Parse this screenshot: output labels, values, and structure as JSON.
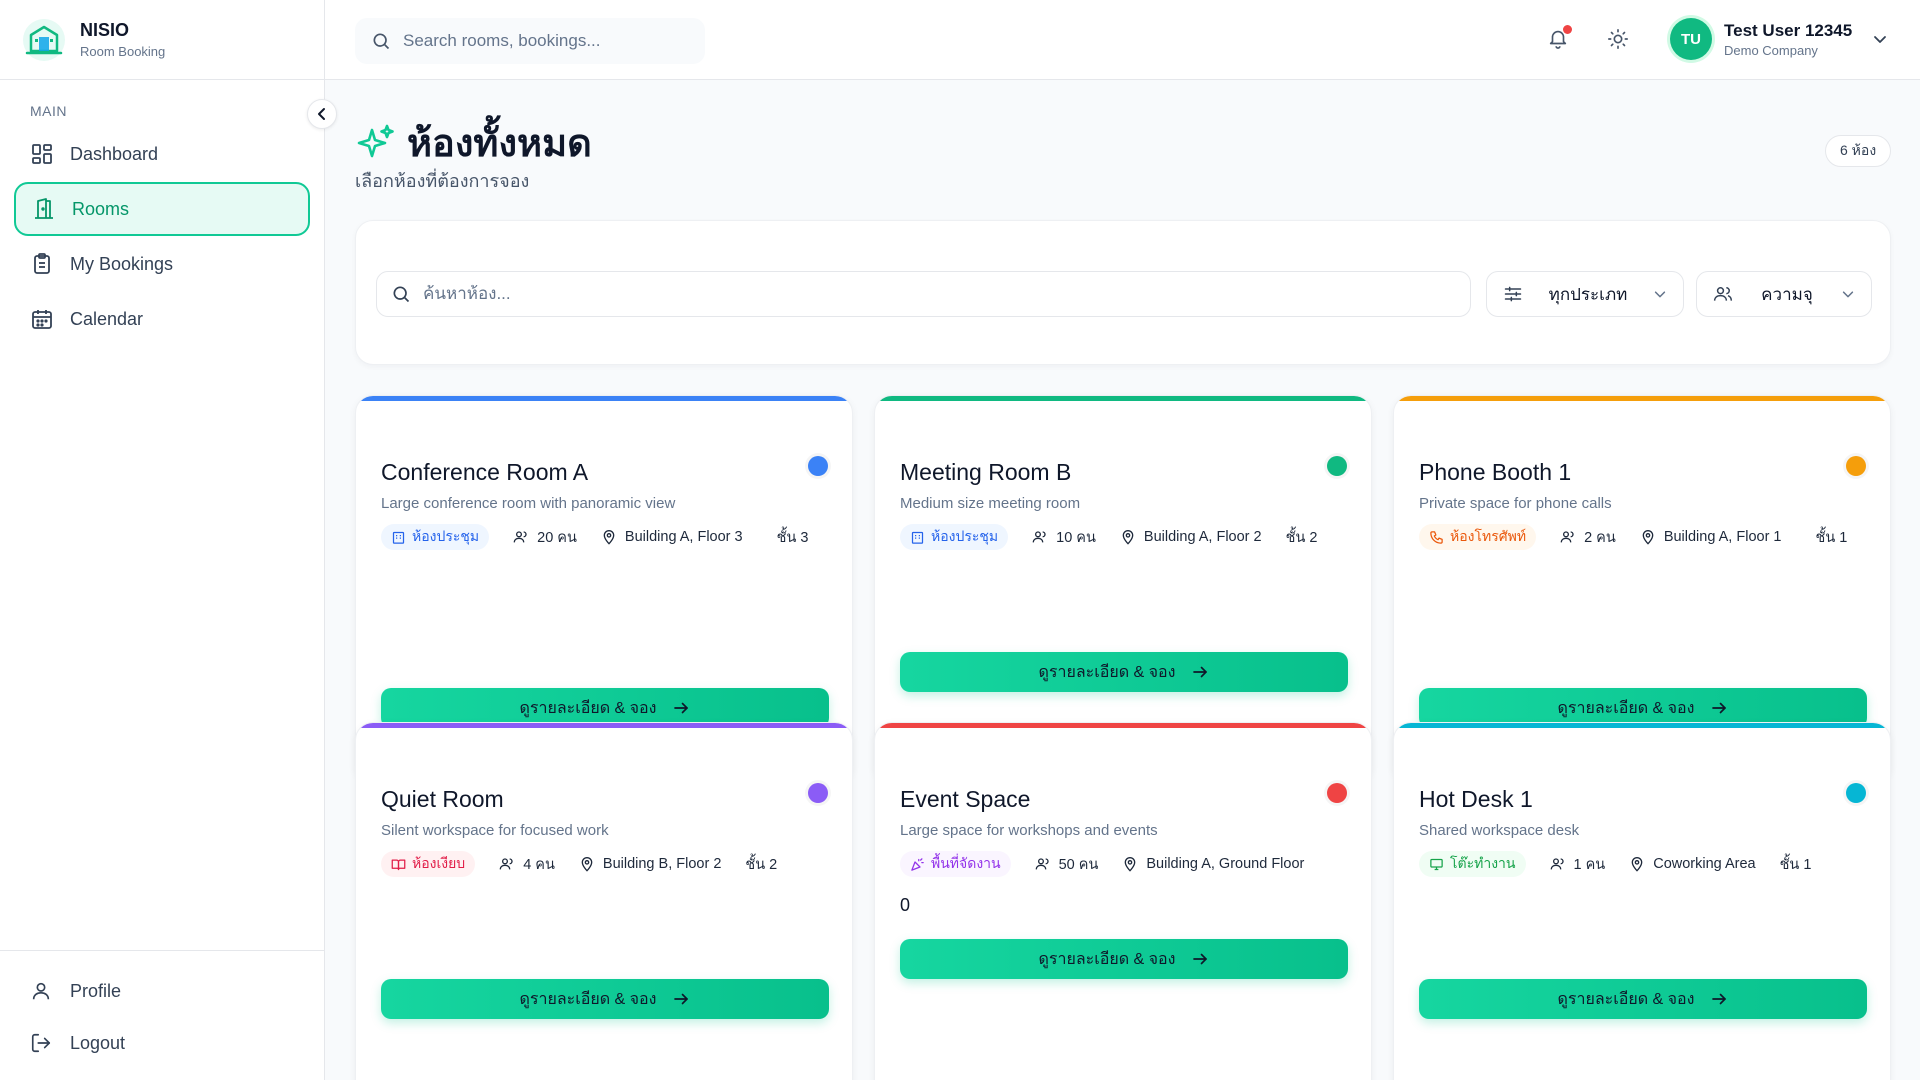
{
  "brand": {
    "name": "NISIO",
    "subtitle": "Room Booking"
  },
  "sidebar": {
    "section_label": "MAIN",
    "items": [
      {
        "label": "Dashboard",
        "icon": "dashboard-icon"
      },
      {
        "label": "Rooms",
        "icon": "door-icon",
        "active": true
      },
      {
        "label": "My Bookings",
        "icon": "clipboard-icon"
      },
      {
        "label": "Calendar",
        "icon": "calendar-icon"
      }
    ],
    "bottom": [
      {
        "label": "Profile",
        "icon": "user-icon"
      },
      {
        "label": "Logout",
        "icon": "logout-icon"
      }
    ]
  },
  "header": {
    "search_placeholder": "Search rooms, bookings...",
    "user_initials": "TU",
    "user_name": "Test User 12345",
    "user_company": "Demo Company"
  },
  "page": {
    "title": "ห้องทั้งหมด",
    "subtitle": "เลือกห้องที่ต้องการจอง",
    "count": "6 ห้อง"
  },
  "filters": {
    "search_placeholder": "ค้นหาห้อง...",
    "type_value": "ทุกประเภท",
    "capacity_value": "ความจุ"
  },
  "colors": {
    "accent": "#10c995",
    "blue": "#3b82f6",
    "green": "#10b981",
    "orange": "#f59e0b",
    "purple": "#8b5cf6",
    "red": "#ef4444",
    "cyan": "#06b6d4"
  },
  "rooms": [
    {
      "name": "Conference Room A",
      "description": "Large conference room with panoramic view",
      "type": "ห้องประชุม",
      "capacity": "20 คน",
      "location": "Building A, Floor 3",
      "floor": "ชั้น 3",
      "cta": "ดูรายละเอียด & จอง"
    },
    {
      "name": "Meeting Room B",
      "description": "Medium size meeting room",
      "type": "ห้องประชุม",
      "capacity": "10 คน",
      "location": "Building A, Floor 2",
      "floor": "ชั้น 2",
      "cta": "ดูรายละเอียด & จอง"
    },
    {
      "name": "Phone Booth 1",
      "description": "Private space for phone calls",
      "type": "ห้องโทรศัพท์",
      "capacity": "2 คน",
      "location": "Building A, Floor 1",
      "floor": "ชั้น 1",
      "cta": "ดูรายละเอียด & จอง"
    },
    {
      "name": "Quiet Room",
      "description": "Silent workspace for focused work",
      "type": "ห้องเงียบ",
      "capacity": "4 คน",
      "location": "Building B, Floor 2",
      "floor": "ชั้น 2",
      "cta": "ดูรายละเอียด & จอง"
    },
    {
      "name": "Event Space",
      "description": "Large space for workshops and events",
      "type": "พื้นที่จัดงาน",
      "capacity": "50 คน",
      "location": "Building A, Ground Floor",
      "extra": "0",
      "cta": "ดูรายละเอียด & จอง"
    },
    {
      "name": "Hot Desk 1",
      "description": "Shared workspace desk",
      "type": "โต๊ะทำงาน",
      "capacity": "1 คน",
      "location": "Coworking Area",
      "floor": "ชั้น 1",
      "cta": "ดูรายละเอียด & จอง"
    }
  ]
}
